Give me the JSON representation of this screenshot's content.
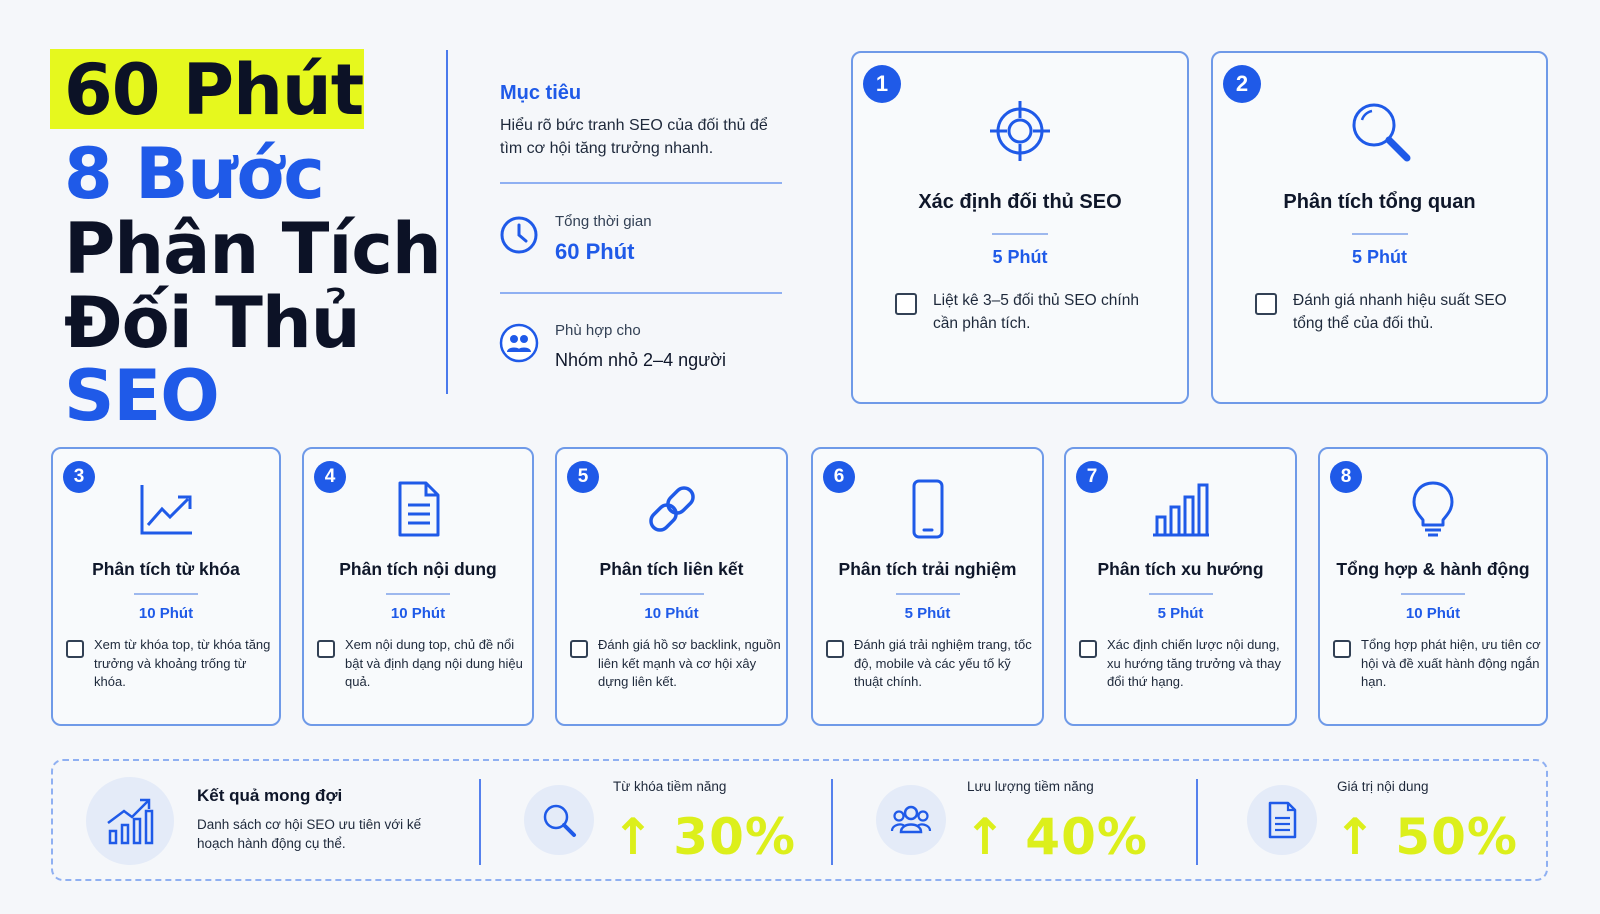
{
  "title": {
    "duration_badge": "60 Phút",
    "line2": "8 Bước",
    "line3": "Phân Tích",
    "line4": "Đối Thủ",
    "line5": "SEO"
  },
  "info": {
    "goal_label": "Mục tiêu",
    "goal_text": "Hiểu rõ bức tranh SEO của đối thủ để tìm cơ hội tăng trưởng nhanh.",
    "total_time_label": "Tổng thời gian",
    "total_time_value": "60 Phút",
    "suitable_label": "Phù hợp cho",
    "suitable_value": "Nhóm nhỏ 2–4 người"
  },
  "steps": [
    {
      "number": "1",
      "title": "Xác định đối thủ SEO",
      "time": "5 Phút",
      "desc": "Liệt kê 3–5 đối thủ SEO chính cần phân tích.",
      "icon": "target-icon"
    },
    {
      "number": "2",
      "title": "Phân tích tổng quan",
      "time": "5 Phút",
      "desc": "Đánh giá nhanh hiệu suất SEO tổng thể của đối thủ.",
      "icon": "magnifier-icon"
    },
    {
      "number": "3",
      "title": "Phân tích từ khóa",
      "time": "10 Phút",
      "desc": "Xem từ khóa top, từ khóa tăng trưởng và khoảng trống từ khóa.",
      "icon": "trend-chart-icon"
    },
    {
      "number": "4",
      "title": "Phân tích nội dung",
      "time": "10 Phút",
      "desc": "Xem nội dung top, chủ đề nổi bật và định dạng nội dung hiệu quả.",
      "icon": "document-icon"
    },
    {
      "number": "5",
      "title": "Phân tích liên kết",
      "time": "10 Phút",
      "desc": "Đánh giá hồ sơ backlink, nguồn liên kết mạnh và cơ hội xây dựng liên kết.",
      "icon": "link-icon"
    },
    {
      "number": "6",
      "title": "Phân tích trải nghiệm",
      "time": "5 Phút",
      "desc": "Đánh giá trải nghiệm trang, tốc độ, mobile và các yếu tố kỹ thuật chính.",
      "icon": "mobile-icon"
    },
    {
      "number": "7",
      "title": "Phân tích xu hướng",
      "time": "5 Phút",
      "desc": "Xác định chiến lược nội dung, xu hướng tăng trưởng và thay đổi thứ hạng.",
      "icon": "bar-chart-icon"
    },
    {
      "number": "8",
      "title": "Tổng hợp & hành động",
      "time": "10 Phút",
      "desc": "Tổng hợp phát hiện, ưu tiên cơ hội và đề xuất hành động ngắn hạn.",
      "icon": "lightbulb-icon"
    }
  ],
  "results": {
    "title": "Kết quả mong đợi",
    "desc": "Danh sách cơ hội SEO ưu tiên với kế hoạch hành động cụ thể.",
    "metrics": [
      {
        "label": "Từ khóa tiềm năng",
        "value": "↑ 30%",
        "percent": 30
      },
      {
        "label": "Lưu lượng tiềm năng",
        "value": "↑ 40%",
        "percent": 40
      },
      {
        "label": "Giá trị nội dung",
        "value": "↑ 50%",
        "percent": 50
      }
    ]
  },
  "colors": {
    "accent_blue": "#1f5ae8",
    "highlight_yellow": "#e6f81e",
    "metric_green": "#dcef1b"
  }
}
